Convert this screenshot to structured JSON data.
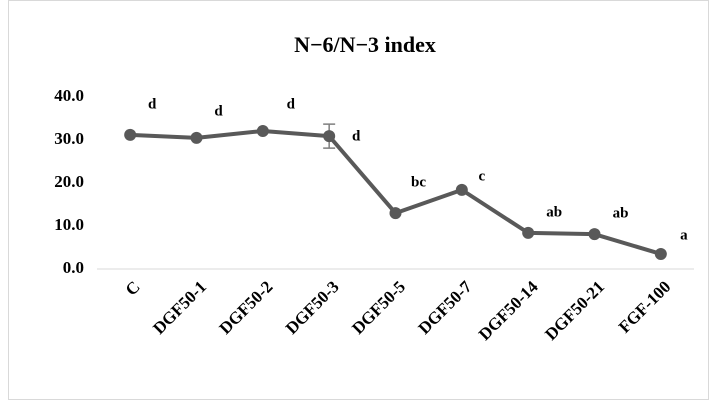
{
  "chart_data": {
    "type": "line",
    "title": "N−6/N−3 index",
    "categories": [
      "C",
      "DGF50-1",
      "DGF50-2",
      "DGF50-3",
      "DGF50-5",
      "DGF50-7",
      "DGF50-14",
      "DGF50-21",
      "FGF-100"
    ],
    "series": [
      {
        "name": "N−6/N−3 index",
        "color": "#595959",
        "values": [
          31.2,
          30.5,
          32.1,
          30.9,
          13.0,
          18.4,
          8.4,
          8.1,
          3.5
        ],
        "errors": [
          null,
          null,
          null,
          2.8,
          null,
          null,
          null,
          null,
          null
        ]
      }
    ],
    "letters": [
      "d",
      "d",
      "d",
      "d",
      "bc",
      "c",
      "ab",
      "ab",
      "a"
    ],
    "ylim": [
      0,
      40
    ],
    "yticks": [
      {
        "value": 0,
        "label": "0.0"
      },
      {
        "value": 10,
        "label": "10.0"
      },
      {
        "value": 20,
        "label": "20.0"
      },
      {
        "value": 30,
        "label": "30.0"
      },
      {
        "value": 40,
        "label": "40.0"
      }
    ],
    "grid": false
  }
}
